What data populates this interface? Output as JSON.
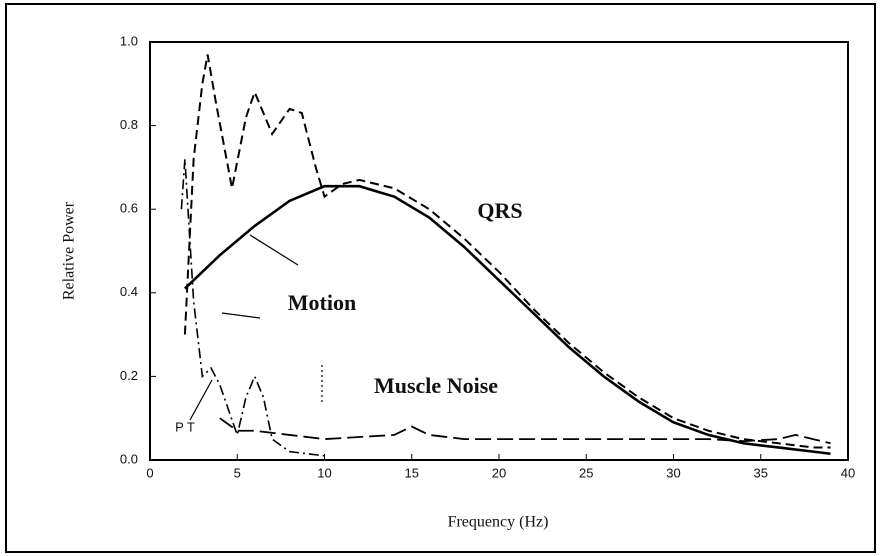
{
  "chart_data": {
    "type": "line",
    "x_label": "Frequency (Hz)",
    "y_label": "Relative Power",
    "xlim": [
      0,
      40
    ],
    "xticks": [
      0,
      5,
      10,
      15,
      20,
      25,
      30,
      35,
      40
    ],
    "ylim": [
      0,
      1
    ],
    "yticks": [
      {
        "value": 0,
        "label": "0.0"
      },
      0.2,
      0.4,
      0.6,
      0.8,
      {
        "value": 1,
        "label": "1.0"
      }
    ],
    "series": [
      {
        "name": "QRS",
        "color": "#000000",
        "style": "solid",
        "x": [
          2,
          4,
          6,
          8,
          10,
          12,
          14,
          16,
          18,
          20,
          22,
          24,
          26,
          28,
          30,
          32,
          34,
          36,
          38,
          39
        ],
        "values": [
          0.41,
          0.49,
          0.56,
          0.62,
          0.655,
          0.655,
          0.63,
          0.58,
          0.51,
          0.43,
          0.35,
          0.27,
          0.2,
          0.14,
          0.09,
          0.06,
          0.04,
          0.03,
          0.02,
          0.015
        ]
      },
      {
        "name": "Motion",
        "color": "#000000",
        "style": "dashed",
        "x": [
          2,
          2.5,
          3,
          3.3,
          3.8,
          4.7,
          5.5,
          6,
          7,
          8,
          8.7,
          9.5,
          10,
          11,
          12,
          14,
          16,
          18,
          20,
          22,
          24,
          26,
          28,
          30,
          32,
          34,
          36,
          38,
          39
        ],
        "values": [
          0.3,
          0.72,
          0.9,
          0.97,
          0.85,
          0.65,
          0.82,
          0.88,
          0.78,
          0.84,
          0.83,
          0.7,
          0.63,
          0.66,
          0.67,
          0.65,
          0.6,
          0.53,
          0.45,
          0.36,
          0.28,
          0.21,
          0.15,
          0.1,
          0.07,
          0.05,
          0.04,
          0.03,
          0.03
        ]
      },
      {
        "name": "Muscle Noise",
        "color": "#000000",
        "style": "longdash",
        "x": [
          4,
          5,
          6,
          8,
          10,
          12,
          14,
          15,
          16,
          18,
          20,
          24,
          28,
          32,
          34,
          36,
          37,
          39
        ],
        "values": [
          0.1,
          0.07,
          0.07,
          0.06,
          0.05,
          0.055,
          0.06,
          0.08,
          0.06,
          0.05,
          0.05,
          0.05,
          0.05,
          0.05,
          0.045,
          0.05,
          0.06,
          0.04
        ]
      },
      {
        "name": "P T",
        "color": "#000000",
        "style": "dashdot",
        "x": [
          1.8,
          2,
          2.5,
          3,
          3.5,
          4,
          5,
          5.5,
          6,
          6.5,
          7,
          8,
          10
        ],
        "values": [
          0.6,
          0.72,
          0.38,
          0.2,
          0.22,
          0.18,
          0.06,
          0.15,
          0.2,
          0.15,
          0.05,
          0.02,
          0.01
        ]
      }
    ]
  }
}
